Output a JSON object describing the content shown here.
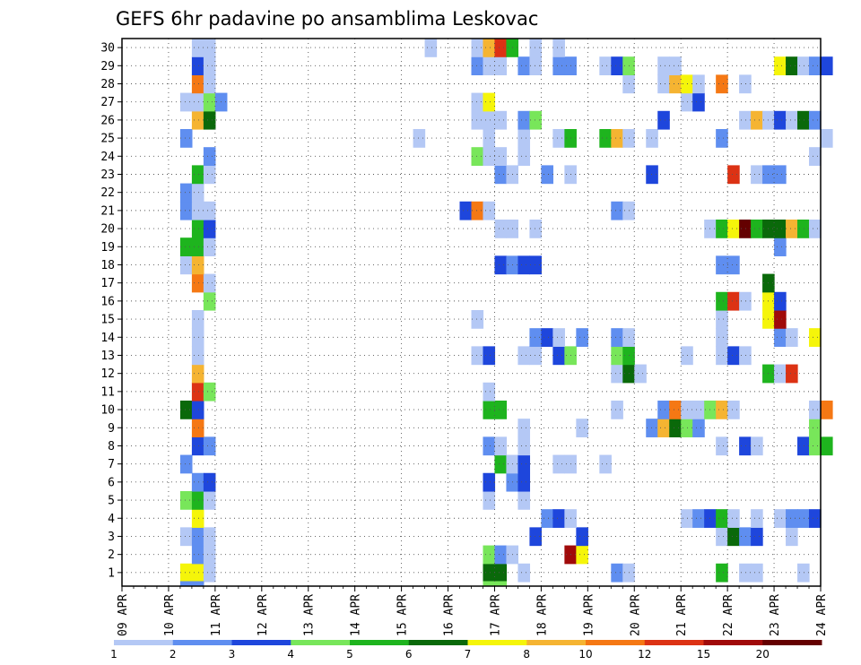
{
  "chart_data": {
    "type": "heatmap",
    "title": "GEFS 6hr padavine po ansamblima Leskovac",
    "x_tick_labels": [
      "09 APR",
      "10 APR",
      "11 APR",
      "12 APR",
      "13 APR",
      "14 APR",
      "15 APR",
      "16 APR",
      "17 APR",
      "18 APR",
      "19 APR",
      "20 APR",
      "21 APR",
      "22 APR",
      "23 APR",
      "24 APR"
    ],
    "y_tick_labels": [
      "1",
      "2",
      "3",
      "4",
      "5",
      "6",
      "7",
      "8",
      "9",
      "10",
      "11",
      "12",
      "13",
      "14",
      "15",
      "16",
      "17",
      "18",
      "19",
      "20",
      "21",
      "22",
      "23",
      "24",
      "25",
      "26",
      "27",
      "28",
      "29",
      "30"
    ],
    "x_range_days": [
      0,
      15
    ],
    "y_range_members": [
      1,
      30
    ],
    "grid": "dotted",
    "legend": {
      "position": "bottom",
      "labels": [
        "1",
        "2",
        "3",
        "4",
        "5",
        "6",
        "7",
        "8",
        "10",
        "12",
        "15",
        "20"
      ],
      "colors": [
        "#b4c8f5",
        "#5f8ef0",
        "#1e46dc",
        "#78e65a",
        "#1eb41e",
        "#0a690a",
        "#f5f50a",
        "#f5b432",
        "#f57814",
        "#dc3214",
        "#a00a0a",
        "#640000"
      ]
    },
    "cell_days": 0.25,
    "cells": [
      [
        1,
        1.25,
        6
      ],
      [
        1,
        1.5,
        6
      ],
      [
        1,
        1.75,
        0
      ],
      [
        1,
        7.75,
        5
      ],
      [
        1,
        8.0,
        5
      ],
      [
        1,
        8.5,
        0
      ],
      [
        1,
        10.5,
        1
      ],
      [
        1,
        10.75,
        0
      ],
      [
        1,
        12.75,
        4
      ],
      [
        1,
        13.25,
        0
      ],
      [
        1,
        13.5,
        0
      ],
      [
        1,
        14.5,
        0
      ],
      [
        2,
        1.5,
        1
      ],
      [
        2,
        1.75,
        0
      ],
      [
        2,
        7.75,
        3
      ],
      [
        2,
        8.0,
        1
      ],
      [
        2,
        8.25,
        0
      ],
      [
        2,
        9.5,
        10
      ],
      [
        2,
        9.75,
        6
      ],
      [
        3,
        1.25,
        0
      ],
      [
        3,
        1.5,
        1
      ],
      [
        3,
        1.75,
        0
      ],
      [
        3,
        8.75,
        2
      ],
      [
        3,
        9.75,
        2
      ],
      [
        3,
        12.75,
        0
      ],
      [
        3,
        13.0,
        5
      ],
      [
        3,
        13.25,
        1
      ],
      [
        3,
        13.5,
        2
      ],
      [
        3,
        14.25,
        0
      ],
      [
        4,
        1.5,
        6
      ],
      [
        4,
        9.0,
        1
      ],
      [
        4,
        9.25,
        2
      ],
      [
        4,
        9.5,
        0
      ],
      [
        4,
        12.0,
        0
      ],
      [
        4,
        12.25,
        1
      ],
      [
        4,
        12.5,
        2
      ],
      [
        4,
        12.75,
        4
      ],
      [
        4,
        13.0,
        0
      ],
      [
        4,
        13.5,
        0
      ],
      [
        4,
        14.0,
        0
      ],
      [
        4,
        14.25,
        1
      ],
      [
        4,
        14.5,
        1
      ],
      [
        4,
        14.75,
        2
      ],
      [
        5,
        1.25,
        3
      ],
      [
        5,
        1.5,
        4
      ],
      [
        5,
        1.75,
        0
      ],
      [
        5,
        7.75,
        0
      ],
      [
        5,
        8.5,
        0
      ],
      [
        6,
        1.5,
        1
      ],
      [
        6,
        1.75,
        2
      ],
      [
        6,
        7.75,
        2
      ],
      [
        6,
        8.25,
        1
      ],
      [
        6,
        8.5,
        2
      ],
      [
        7,
        1.25,
        1
      ],
      [
        7,
        8.0,
        4
      ],
      [
        7,
        8.25,
        0
      ],
      [
        7,
        8.5,
        2
      ],
      [
        7,
        9.25,
        0
      ],
      [
        7,
        9.5,
        0
      ],
      [
        7,
        10.25,
        0
      ],
      [
        8,
        1.5,
        2
      ],
      [
        8,
        1.75,
        1
      ],
      [
        8,
        7.75,
        1
      ],
      [
        8,
        8.0,
        0
      ],
      [
        8,
        8.5,
        0
      ],
      [
        8,
        12.75,
        0
      ],
      [
        8,
        13.25,
        2
      ],
      [
        8,
        13.5,
        0
      ],
      [
        8,
        14.5,
        2
      ],
      [
        8,
        14.75,
        3
      ],
      [
        8,
        15.0,
        4
      ],
      [
        9,
        1.5,
        8
      ],
      [
        9,
        8.5,
        0
      ],
      [
        9,
        9.75,
        0
      ],
      [
        9,
        11.25,
        1
      ],
      [
        9,
        11.5,
        7
      ],
      [
        9,
        11.75,
        5
      ],
      [
        9,
        12.0,
        3
      ],
      [
        9,
        12.25,
        1
      ],
      [
        9,
        14.75,
        3
      ],
      [
        10,
        1.25,
        5
      ],
      [
        10,
        1.5,
        2
      ],
      [
        10,
        7.75,
        4
      ],
      [
        10,
        8.0,
        4
      ],
      [
        10,
        10.5,
        0
      ],
      [
        10,
        11.5,
        1
      ],
      [
        10,
        11.75,
        8
      ],
      [
        10,
        12.0,
        0
      ],
      [
        10,
        12.25,
        0
      ],
      [
        10,
        12.5,
        3
      ],
      [
        10,
        12.75,
        7
      ],
      [
        10,
        13.0,
        0
      ],
      [
        10,
        14.75,
        0
      ],
      [
        10,
        15.0,
        8
      ],
      [
        11,
        1.5,
        9
      ],
      [
        11,
        1.75,
        3
      ],
      [
        11,
        7.75,
        0
      ],
      [
        12,
        1.5,
        7
      ],
      [
        12,
        10.5,
        0
      ],
      [
        12,
        10.75,
        5
      ],
      [
        12,
        11.0,
        0
      ],
      [
        12,
        13.75,
        4
      ],
      [
        12,
        14.0,
        0
      ],
      [
        12,
        14.25,
        9
      ],
      [
        13,
        1.5,
        0
      ],
      [
        13,
        7.5,
        0
      ],
      [
        13,
        7.75,
        2
      ],
      [
        13,
        8.5,
        0
      ],
      [
        13,
        8.75,
        0
      ],
      [
        13,
        9.25,
        2
      ],
      [
        13,
        9.5,
        3
      ],
      [
        13,
        10.5,
        3
      ],
      [
        13,
        10.75,
        4
      ],
      [
        13,
        12.0,
        0
      ],
      [
        13,
        12.75,
        0
      ],
      [
        13,
        13.0,
        2
      ],
      [
        13,
        13.25,
        0
      ],
      [
        14,
        1.5,
        0
      ],
      [
        14,
        8.75,
        1
      ],
      [
        14,
        9.0,
        2
      ],
      [
        14,
        9.25,
        0
      ],
      [
        14,
        9.75,
        1
      ],
      [
        14,
        10.5,
        1
      ],
      [
        14,
        10.75,
        0
      ],
      [
        14,
        12.75,
        0
      ],
      [
        14,
        14.0,
        1
      ],
      [
        14,
        14.25,
        0
      ],
      [
        14,
        14.75,
        6
      ],
      [
        15,
        1.5,
        0
      ],
      [
        15,
        7.5,
        0
      ],
      [
        15,
        12.75,
        0
      ],
      [
        15,
        13.75,
        6
      ],
      [
        15,
        14.0,
        10
      ],
      [
        16,
        1.75,
        3
      ],
      [
        16,
        12.75,
        4
      ],
      [
        16,
        13.0,
        9
      ],
      [
        16,
        13.25,
        0
      ],
      [
        16,
        13.75,
        6
      ],
      [
        16,
        14.0,
        2
      ],
      [
        17,
        1.5,
        8
      ],
      [
        17,
        1.75,
        0
      ],
      [
        17,
        13.75,
        5
      ],
      [
        18,
        1.25,
        0
      ],
      [
        18,
        1.5,
        7
      ],
      [
        18,
        8.0,
        2
      ],
      [
        18,
        8.25,
        1
      ],
      [
        18,
        8.5,
        2
      ],
      [
        18,
        8.75,
        2
      ],
      [
        18,
        12.75,
        1
      ],
      [
        18,
        13.0,
        1
      ],
      [
        19,
        1.25,
        4
      ],
      [
        19,
        1.5,
        4
      ],
      [
        19,
        1.75,
        0
      ],
      [
        19,
        14.0,
        1
      ],
      [
        20,
        1.5,
        4
      ],
      [
        20,
        1.75,
        2
      ],
      [
        20,
        8.0,
        0
      ],
      [
        20,
        8.25,
        0
      ],
      [
        20,
        8.75,
        0
      ],
      [
        20,
        12.5,
        0
      ],
      [
        20,
        12.75,
        4
      ],
      [
        20,
        13.0,
        6
      ],
      [
        20,
        13.25,
        11
      ],
      [
        20,
        13.5,
        4
      ],
      [
        20,
        13.75,
        5
      ],
      [
        20,
        14.0,
        5
      ],
      [
        20,
        14.25,
        7
      ],
      [
        20,
        14.5,
        4
      ],
      [
        20,
        14.75,
        0
      ],
      [
        21,
        1.25,
        1
      ],
      [
        21,
        1.5,
        0
      ],
      [
        21,
        1.75,
        0
      ],
      [
        21,
        7.25,
        2
      ],
      [
        21,
        7.5,
        8
      ],
      [
        21,
        7.75,
        0
      ],
      [
        21,
        10.5,
        1
      ],
      [
        21,
        10.75,
        0
      ],
      [
        22,
        1.25,
        1
      ],
      [
        22,
        1.5,
        0
      ],
      [
        23,
        1.5,
        4
      ],
      [
        23,
        1.75,
        0
      ],
      [
        23,
        8.0,
        1
      ],
      [
        23,
        8.25,
        0
      ],
      [
        23,
        9.0,
        1
      ],
      [
        23,
        9.5,
        0
      ],
      [
        23,
        11.25,
        2
      ],
      [
        23,
        13.0,
        9
      ],
      [
        23,
        13.5,
        0
      ],
      [
        23,
        13.75,
        1
      ],
      [
        23,
        14.0,
        1
      ],
      [
        24,
        1.75,
        1
      ],
      [
        24,
        7.5,
        3
      ],
      [
        24,
        7.75,
        0
      ],
      [
        24,
        8.0,
        0
      ],
      [
        24,
        8.5,
        0
      ],
      [
        24,
        14.75,
        0
      ],
      [
        25,
        1.25,
        1
      ],
      [
        25,
        6.25,
        0
      ],
      [
        25,
        7.75,
        0
      ],
      [
        25,
        8.5,
        0
      ],
      [
        25,
        9.25,
        0
      ],
      [
        25,
        9.5,
        4
      ],
      [
        25,
        10.25,
        4
      ],
      [
        25,
        10.5,
        7
      ],
      [
        25,
        10.75,
        0
      ],
      [
        25,
        11.25,
        0
      ],
      [
        25,
        12.75,
        1
      ],
      [
        25,
        15.0,
        0
      ],
      [
        26,
        1.5,
        7
      ],
      [
        26,
        1.75,
        5
      ],
      [
        26,
        7.5,
        0
      ],
      [
        26,
        7.75,
        0
      ],
      [
        26,
        8.0,
        0
      ],
      [
        26,
        8.5,
        1
      ],
      [
        26,
        8.75,
        3
      ],
      [
        26,
        11.5,
        2
      ],
      [
        26,
        13.25,
        0
      ],
      [
        26,
        13.5,
        7
      ],
      [
        26,
        13.75,
        0
      ],
      [
        26,
        14.0,
        2
      ],
      [
        26,
        14.25,
        0
      ],
      [
        26,
        14.5,
        5
      ],
      [
        26,
        14.75,
        1
      ],
      [
        27,
        1.25,
        0
      ],
      [
        27,
        1.5,
        0
      ],
      [
        27,
        1.75,
        3
      ],
      [
        27,
        2.0,
        1
      ],
      [
        27,
        7.5,
        0
      ],
      [
        27,
        7.75,
        6
      ],
      [
        27,
        12.0,
        0
      ],
      [
        27,
        12.25,
        2
      ],
      [
        28,
        1.5,
        8
      ],
      [
        28,
        1.75,
        0
      ],
      [
        28,
        10.75,
        0
      ],
      [
        28,
        11.5,
        0
      ],
      [
        28,
        11.75,
        7
      ],
      [
        28,
        12.0,
        6
      ],
      [
        28,
        12.25,
        0
      ],
      [
        28,
        12.75,
        8
      ],
      [
        28,
        13.25,
        0
      ],
      [
        29,
        1.5,
        2
      ],
      [
        29,
        1.75,
        0
      ],
      [
        29,
        7.5,
        1
      ],
      [
        29,
        7.75,
        0
      ],
      [
        29,
        8.0,
        0
      ],
      [
        29,
        8.5,
        1
      ],
      [
        29,
        8.75,
        0
      ],
      [
        29,
        9.25,
        1
      ],
      [
        29,
        9.5,
        1
      ],
      [
        29,
        10.25,
        0
      ],
      [
        29,
        10.5,
        2
      ],
      [
        29,
        10.75,
        3
      ],
      [
        29,
        11.5,
        0
      ],
      [
        29,
        11.75,
        0
      ],
      [
        29,
        14.0,
        6
      ],
      [
        29,
        14.25,
        5
      ],
      [
        29,
        14.5,
        0
      ],
      [
        29,
        14.75,
        1
      ],
      [
        29,
        15.0,
        2
      ],
      [
        30,
        1.5,
        0
      ],
      [
        30,
        1.75,
        0
      ],
      [
        30,
        6.5,
        0
      ],
      [
        30,
        7.5,
        0
      ],
      [
        30,
        7.75,
        7
      ],
      [
        30,
        8.0,
        9
      ],
      [
        30,
        8.25,
        4
      ],
      [
        30,
        8.75,
        0
      ],
      [
        30,
        9.25,
        0
      ]
    ],
    "extra_row_below_1": [
      [
        1.25,
        1
      ],
      [
        1.5,
        1
      ],
      [
        7.75,
        3
      ],
      [
        8.0,
        3
      ]
    ]
  }
}
